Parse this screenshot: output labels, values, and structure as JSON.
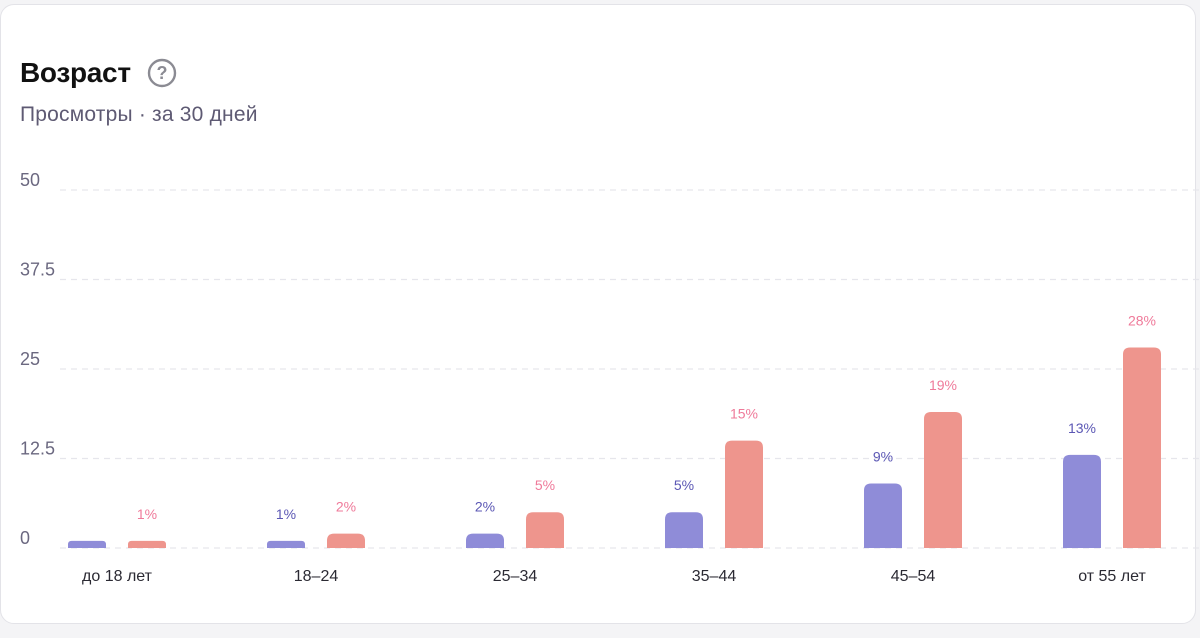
{
  "header": {
    "title": "Возраст",
    "help_icon": "question-circle-icon",
    "subtitle": "Просмотры · за 30 дней"
  },
  "colors": {
    "series_a": "#8f8cd8",
    "series_b": "#ee958d",
    "label_a": "#5b57b4",
    "label_b": "#ef7a9a",
    "grid": "#e6e6ec"
  },
  "chart_data": {
    "type": "bar",
    "categories": [
      "до 18 лет",
      "18–24",
      "25–34",
      "35–44",
      "45–54",
      "от 55 лет"
    ],
    "series": [
      {
        "values": [
          1,
          1,
          2,
          5,
          9,
          13
        ],
        "labels": [
          "",
          "1%",
          "2%",
          "5%",
          "9%",
          "13%"
        ]
      },
      {
        "values": [
          1,
          2,
          5,
          15,
          19,
          28
        ],
        "labels": [
          "1%",
          "2%",
          "5%",
          "15%",
          "19%",
          "28%"
        ]
      }
    ],
    "yticks": [
      "0",
      "12.5",
      "25",
      "37.5",
      "50"
    ],
    "ylim": [
      0,
      50
    ],
    "grid": true
  }
}
